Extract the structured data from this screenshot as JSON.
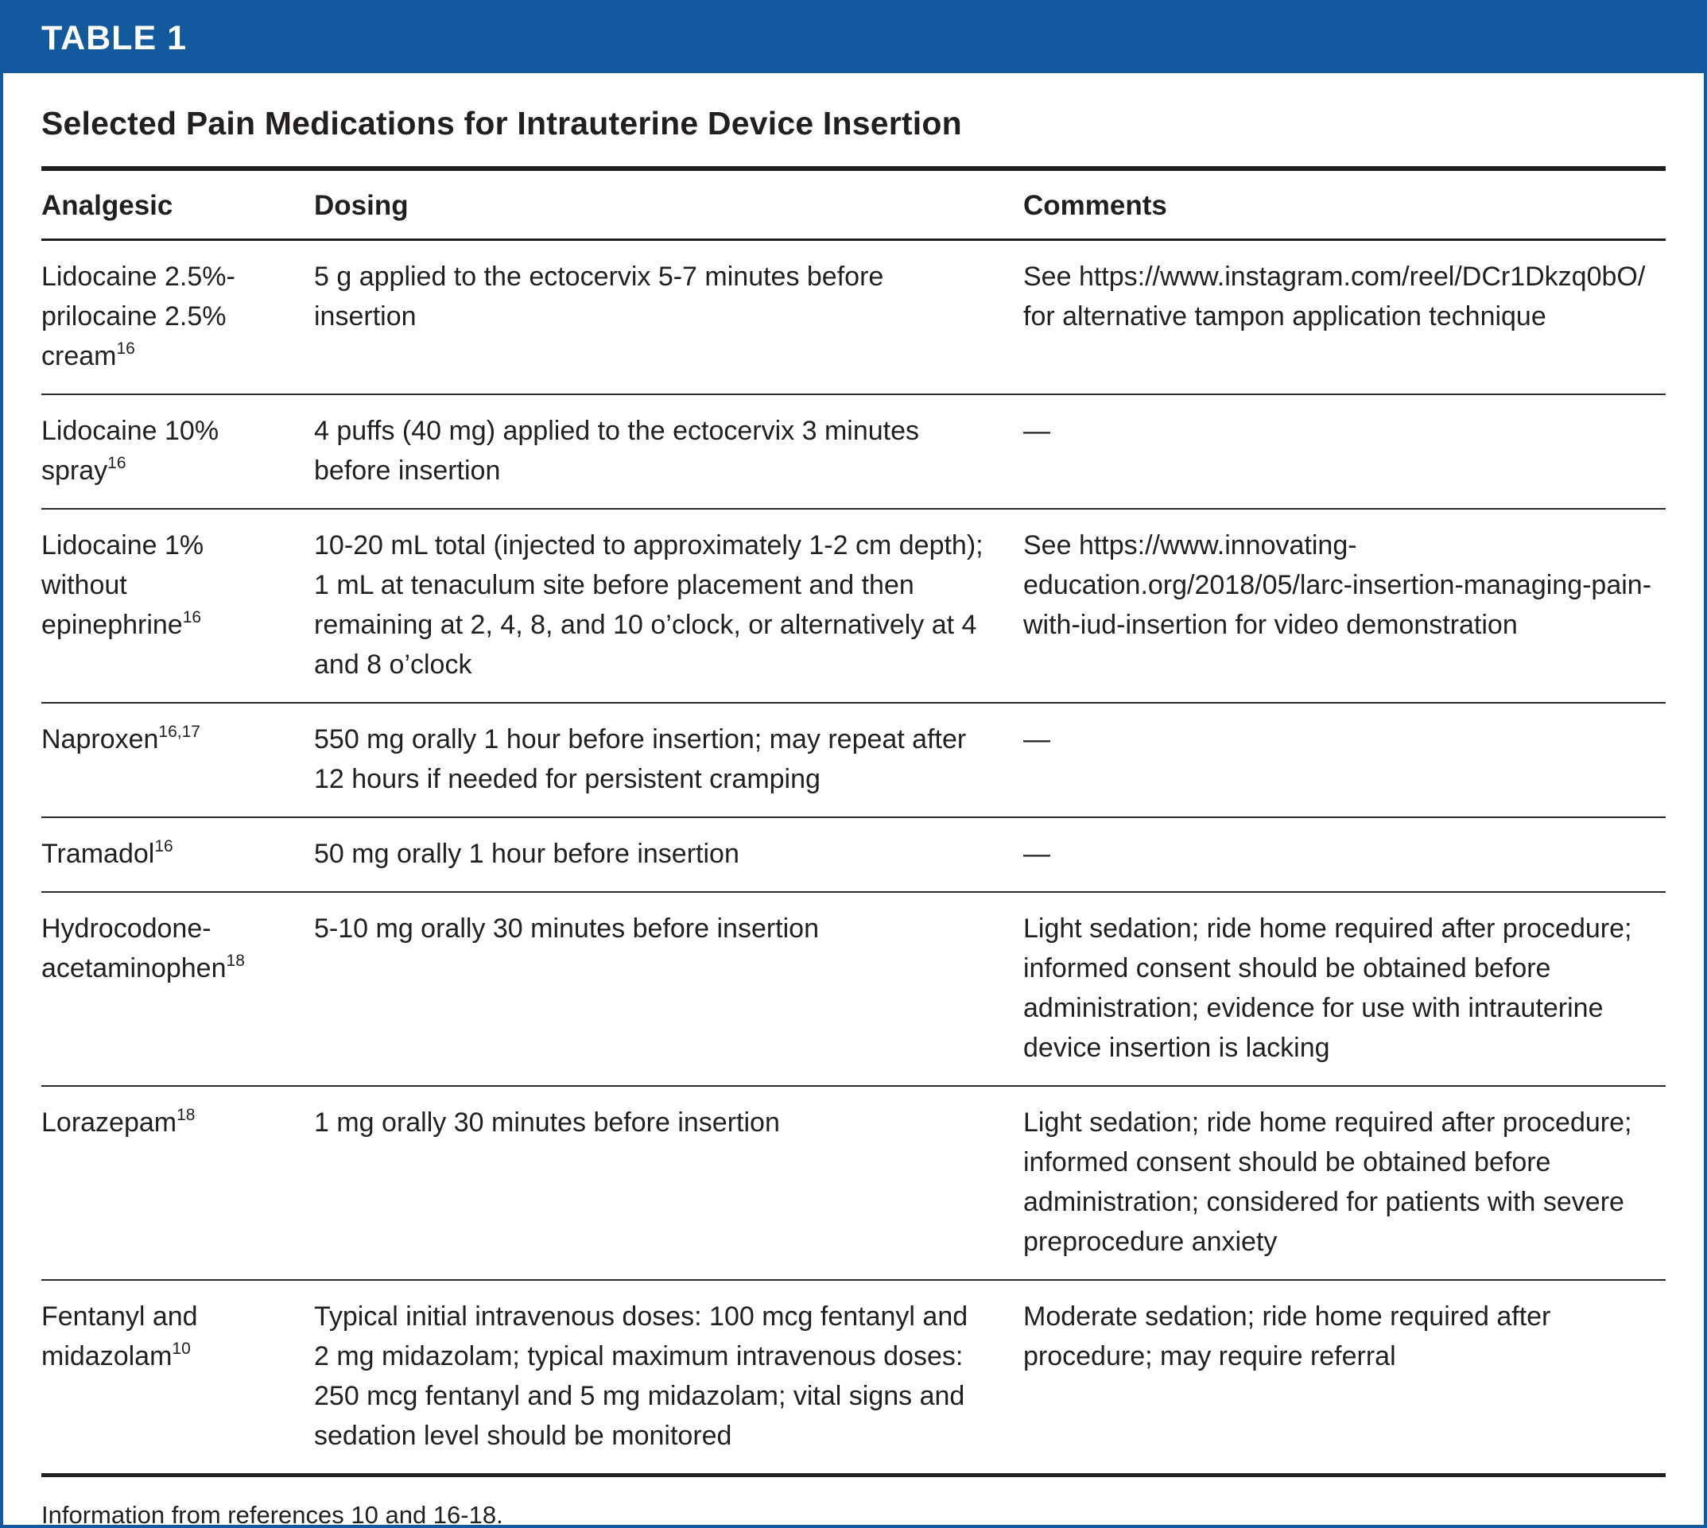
{
  "header": {
    "label": "TABLE 1"
  },
  "title": "Selected Pain Medications for Intrauterine Device Insertion",
  "columns": {
    "analgesic": "Analgesic",
    "dosing": "Dosing",
    "comments": "Comments"
  },
  "rows": [
    {
      "analgesic": "Lidocaine 2.5%-prilocaine 2.5% cream",
      "analgesic_sup": "16",
      "dosing": "5 g applied to the ectocervix 5-7 minutes before insertion",
      "comments": "See https://www.instagram.com/reel/DCr1Dkzq0bO/ for alternative tampon application technique"
    },
    {
      "analgesic": "Lidocaine 10% spray",
      "analgesic_sup": "16",
      "dosing": "4 puffs (40 mg) applied to the ectocervix 3 minutes before insertion",
      "comments": "—"
    },
    {
      "analgesic": "Lidocaine 1% without epinephrine",
      "analgesic_sup": "16",
      "dosing": "10-20 mL total (injected to approximately 1-2 cm depth); 1 mL at tenaculum site before placement and then remaining at 2, 4, 8, and 10 o’clock, or alternatively at 4 and 8 o’clock",
      "comments": "See https://www.innovating-education.org/2018/05/larc-insertion-managing-pain-with-iud-insertion for video demonstration"
    },
    {
      "analgesic": "Naproxen",
      "analgesic_sup": "16,17",
      "dosing": "550 mg orally 1 hour before insertion; may repeat after 12 hours if needed for persistent cramping",
      "comments": "—"
    },
    {
      "analgesic": "Tramadol",
      "analgesic_sup": "16",
      "dosing": "50 mg orally 1 hour before insertion",
      "comments": "—"
    },
    {
      "analgesic": "Hydrocodone-acetaminophen",
      "analgesic_sup": "18",
      "dosing": "5-10 mg orally 30 minutes before insertion",
      "comments": "Light sedation; ride home required after procedure; informed consent should be obtained before administration; evidence for use with intrauterine device insertion is lacking"
    },
    {
      "analgesic": "Lorazepam",
      "analgesic_sup": "18",
      "dosing": "1 mg orally 30 minutes before insertion",
      "comments": "Light sedation; ride home required after procedure; informed consent should be obtained before administration; considered for patients with severe preprocedure anxiety"
    },
    {
      "analgesic": "Fentanyl and midazolam",
      "analgesic_sup": "10",
      "dosing": "Typical initial intravenous doses: 100 mcg fentanyl and 2 mg midazolam; typical maximum intravenous doses: 250 mcg fentanyl and 5 mg midazolam; vital signs and sedation level should be monitored",
      "comments": "Moderate sedation; ride home required after procedure; may require referral"
    }
  ],
  "footnote": "Information from references 10 and 16-18.",
  "colors": {
    "band_blue": "#13599e",
    "text_black": "#231f20"
  }
}
